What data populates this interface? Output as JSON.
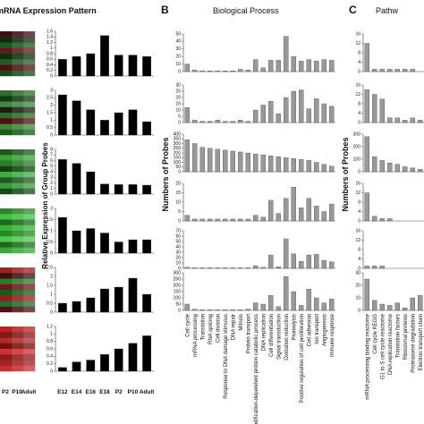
{
  "chart_data": [
    {
      "type": "bar",
      "title": "mRNA Expression Pattern",
      "ylabel": "Relative Expression of Group Probes",
      "heatmap_labels": [
        "P2",
        "P10",
        "Adult"
      ],
      "categories": [
        "E12",
        "E14",
        "E16",
        "E18",
        "P2",
        "P10",
        "Adult"
      ],
      "panels": [
        {
          "color": "#000000",
          "ylim": [
            0,
            1.6
          ],
          "yticks": [
            0,
            0.2,
            0.4,
            0.6,
            0.8,
            1,
            1.2,
            1.4,
            1.6
          ],
          "values": [
            0.6,
            0.7,
            0.8,
            1.45,
            0.75,
            0.75,
            0.7
          ]
        },
        {
          "color": "#000000",
          "ylim": [
            0,
            3
          ],
          "yticks": [
            0,
            0.5,
            1,
            1.5,
            2,
            2.5,
            3
          ],
          "values": [
            2.7,
            2.3,
            1.7,
            1.0,
            1.5,
            1.7,
            0.9
          ]
        },
        {
          "color": "#000000",
          "ylim": [
            0,
            8
          ],
          "yticks": [
            0,
            1,
            2,
            3,
            4,
            5,
            6,
            7,
            8
          ],
          "values": [
            6.2,
            5.5,
            4.0,
            1.8,
            1.7,
            1.7,
            1.6
          ]
        },
        {
          "color": "#000000",
          "ylim": [
            0,
            2
          ],
          "yticks": [
            0,
            0.5,
            1,
            1.5,
            2
          ],
          "values": [
            1.6,
            1.0,
            1.1,
            0.9,
            0.5,
            0.6,
            0.6
          ]
        },
        {
          "color": "#000000",
          "ylim": [
            0,
            2.5
          ],
          "yticks": [
            0,
            0.5,
            1,
            1.5,
            2,
            2.5
          ],
          "values": [
            0.5,
            0.6,
            0.8,
            1.3,
            1.4,
            1.9,
            1.0
          ]
        },
        {
          "color": "#000000",
          "ylim": [
            0,
            1.2
          ],
          "yticks": [
            0,
            0.2,
            0.4,
            0.6,
            0.8,
            1,
            1.2
          ],
          "values": [
            0.1,
            0.25,
            0.3,
            0.45,
            0.6,
            0.75,
            0.95
          ]
        }
      ]
    },
    {
      "type": "bar",
      "label": "B",
      "title": "Biological Process",
      "ylabel": "Numbers of Probes",
      "categories": [
        "Cell cycle",
        "mRNA processing",
        "Translation",
        "RNA splicing",
        "Cell division",
        "Response to DNA damage stimulus",
        "DNA repair",
        "Mitosis",
        "Protein transport",
        "Modification-dependent protein catabolic process",
        "DNA replication",
        "Cell differentiation",
        "Signal transduction",
        "Oxidation reduction",
        "Proteolysis",
        "Positive regulation of cell proliferation",
        "Cell adhesion",
        "Ion transport",
        "Angiogenesis",
        "Immune response"
      ],
      "panels": [
        {
          "color": "#999999",
          "ylim": [
            0,
            50
          ],
          "yticks": [
            0,
            10,
            20,
            30,
            40,
            50
          ],
          "values": [
            10,
            2,
            1,
            1,
            1,
            1,
            1,
            3,
            2,
            16,
            5,
            15,
            15,
            47,
            20,
            14,
            16,
            14,
            16,
            15
          ]
        },
        {
          "color": "#999999",
          "ylim": [
            0,
            30
          ],
          "yticks": [
            0,
            5,
            10,
            15,
            20,
            25,
            30
          ],
          "values": [
            12,
            2,
            1,
            1,
            2,
            1,
            1,
            2,
            1,
            10,
            14,
            17,
            7,
            20,
            25,
            26,
            11,
            19,
            15,
            13
          ]
        },
        {
          "color": "#999999",
          "ylim": [
            0,
            400
          ],
          "yticks": [
            0,
            50,
            100,
            150,
            200,
            250,
            300,
            350,
            400
          ],
          "values": [
            340,
            300,
            260,
            250,
            240,
            230,
            220,
            210,
            200,
            190,
            180,
            170,
            160,
            150,
            140,
            130,
            120,
            100,
            80,
            60
          ]
        },
        {
          "color": "#999999",
          "ylim": [
            0,
            20
          ],
          "yticks": [
            0,
            5,
            10,
            15,
            20
          ],
          "values": [
            3,
            1,
            1,
            1,
            1,
            1,
            1,
            1,
            1,
            3,
            2,
            11,
            4,
            12,
            18,
            7,
            12,
            8,
            5,
            9
          ]
        },
        {
          "color": "#999999",
          "ylim": [
            0,
            70
          ],
          "yticks": [
            0,
            10,
            20,
            30,
            40,
            50,
            60,
            70
          ],
          "values": [
            2,
            1,
            1,
            1,
            1,
            1,
            1,
            1,
            1,
            5,
            2,
            25,
            3,
            55,
            27,
            13,
            25,
            26,
            15,
            12
          ]
        },
        {
          "color": "#999999",
          "ylim": [
            0,
            300
          ],
          "yticks": [
            0,
            50,
            100,
            150,
            200,
            250,
            300
          ],
          "values": [
            50,
            10,
            5,
            5,
            5,
            5,
            5,
            5,
            10,
            60,
            50,
            120,
            30,
            270,
            150,
            40,
            170,
            100,
            60,
            90
          ]
        }
      ]
    },
    {
      "type": "bar",
      "label": "C",
      "title": "Pathw",
      "ylabel": "Numbers of Probes",
      "categories": [
        "mRNA processing binding reactome",
        "Cell cycle KEGG",
        "G1 to S cell cycle reactome",
        "DNA replication reactome",
        "Translation factors",
        "Ribosomal proteins",
        "Proteasome degradation",
        "Electron transport chain"
      ],
      "panels": [
        {
          "color": "#999999",
          "ylim": [
            0,
            16
          ],
          "yticks": [
            0,
            4,
            8,
            12,
            16
          ],
          "values": [
            12,
            1,
            1,
            1,
            1,
            1,
            1,
            0
          ]
        },
        {
          "color": "#999999",
          "ylim": [
            0,
            16
          ],
          "yticks": [
            0,
            4,
            8,
            12,
            16
          ],
          "values": [
            14,
            12,
            10,
            2,
            2,
            1,
            2,
            1
          ]
        },
        {
          "color": "#999999",
          "ylim": [
            0,
            300
          ],
          "yticks": [
            0,
            100,
            200,
            300
          ],
          "values": [
            280,
            120,
            90,
            70,
            60,
            40,
            30,
            20
          ]
        },
        {
          "color": "#999999",
          "ylim": [
            0,
            16
          ],
          "yticks": [
            0,
            4,
            8,
            12,
            16
          ],
          "values": [
            12,
            2,
            1,
            1,
            0,
            0,
            0,
            0
          ]
        },
        {
          "color": "#999999",
          "ylim": [
            0,
            16
          ],
          "yticks": [
            0,
            4,
            8,
            12,
            16
          ],
          "values": [
            1,
            1,
            1,
            0,
            0,
            0,
            0,
            0
          ]
        },
        {
          "color": "#999999",
          "ylim": [
            0,
            30
          ],
          "yticks": [
            0,
            10,
            20,
            30
          ],
          "values": [
            25,
            8,
            5,
            4,
            6,
            2,
            10,
            12
          ]
        }
      ]
    }
  ]
}
